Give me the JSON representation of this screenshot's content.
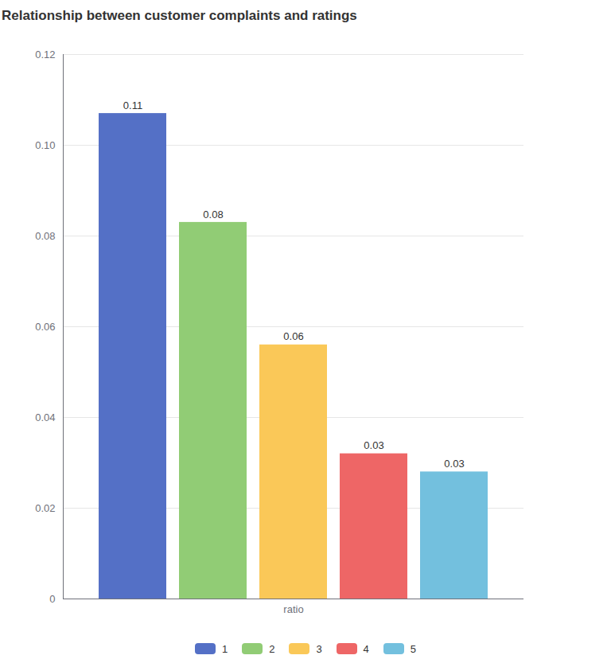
{
  "chart_data": {
    "type": "bar",
    "title": "Relationship between customer complaints and ratings",
    "categories": [
      "ratio"
    ],
    "series": [
      {
        "name": "1",
        "color": "#5470c6",
        "values": [
          0.107
        ],
        "value_labels": [
          "0.11"
        ]
      },
      {
        "name": "2",
        "color": "#91cc75",
        "values": [
          0.083
        ],
        "value_labels": [
          "0.08"
        ]
      },
      {
        "name": "3",
        "color": "#fac858",
        "values": [
          0.056
        ],
        "value_labels": [
          "0.06"
        ]
      },
      {
        "name": "4",
        "color": "#ee6666",
        "values": [
          0.032
        ],
        "value_labels": [
          "0.03"
        ]
      },
      {
        "name": "5",
        "color": "#73c0de",
        "values": [
          0.028
        ],
        "value_labels": [
          "0.03"
        ]
      }
    ],
    "ylim": [
      0,
      0.12
    ],
    "yticks": [
      0,
      0.02,
      0.04,
      0.06,
      0.08,
      {
        "value": 0.1,
        "label": "0.10"
      },
      0.12
    ],
    "grid": true,
    "legend": "bottom",
    "data_labels": true
  }
}
